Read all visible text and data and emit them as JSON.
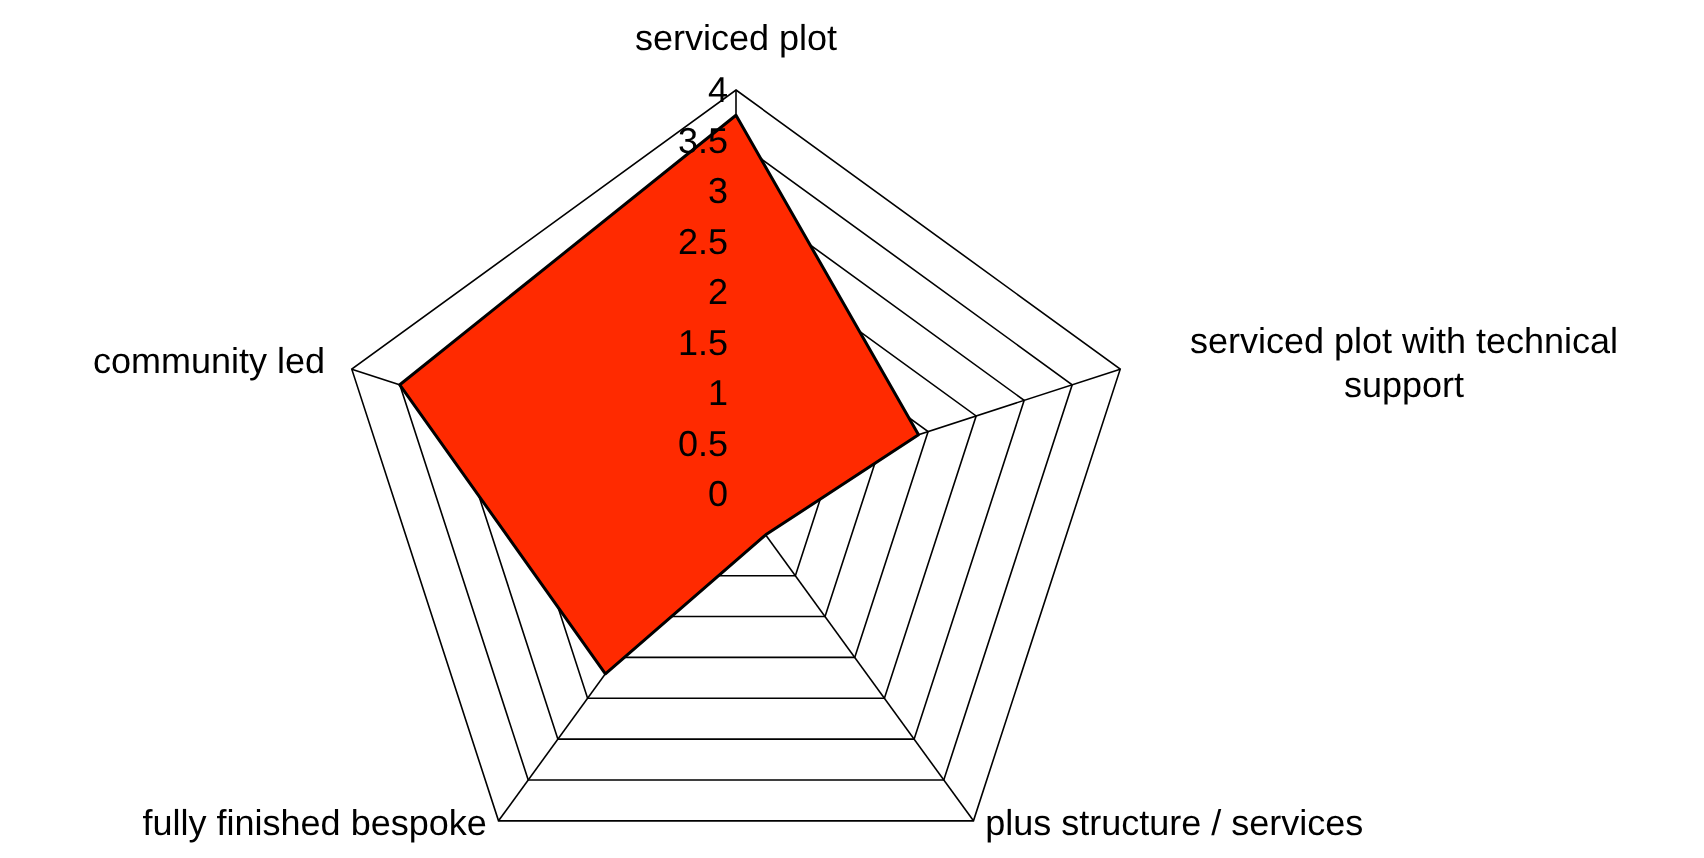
{
  "chart_data": {
    "type": "radar",
    "categories": [
      "serviced plot",
      "serviced plot with technical support",
      "plus structure / services",
      "fully finished bespoke",
      "community led"
    ],
    "series": [
      {
        "color": "#ff2a00",
        "values": [
          3.75,
          1.9,
          0.5,
          2.2,
          3.5
        ]
      }
    ],
    "ylim": [
      0,
      4
    ],
    "yticks": [
      0,
      0.5,
      1,
      1.5,
      2,
      2.5,
      3,
      3.5,
      4
    ],
    "grid": true
  }
}
